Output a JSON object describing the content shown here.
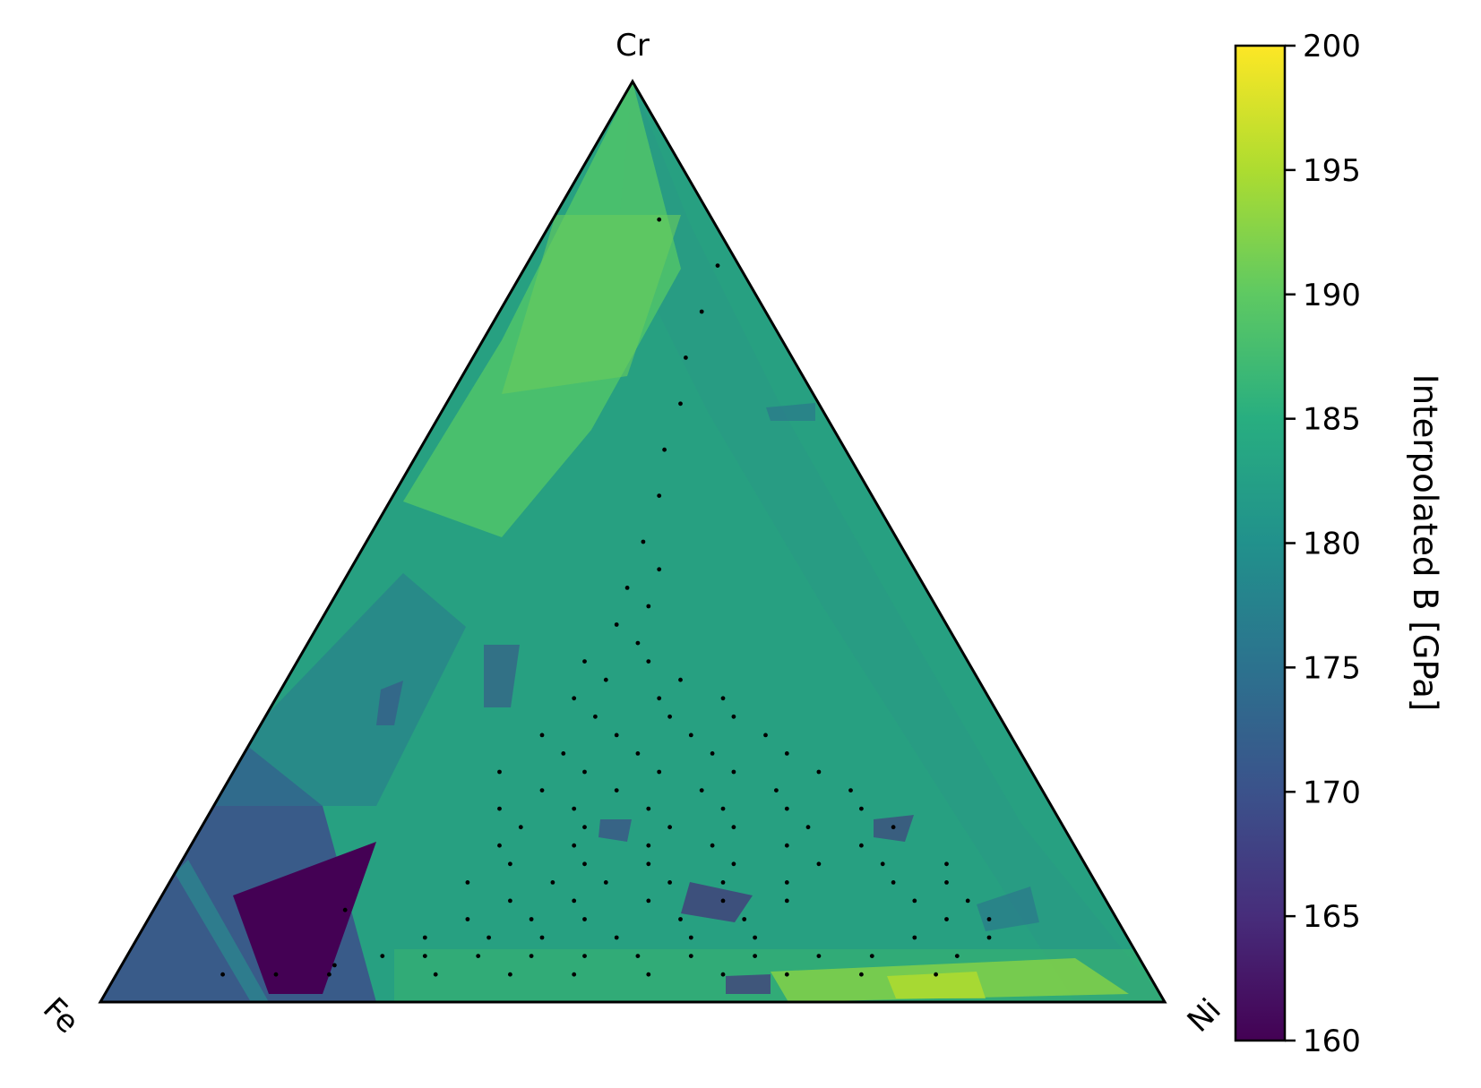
{
  "chart_data": {
    "type": "heatmap",
    "subtype": "ternary",
    "vertices": {
      "top": "Cr",
      "left": "Fe",
      "right": "Ni"
    },
    "colorbar": {
      "label": "Interpolated B [GPa]",
      "colormap": "viridis",
      "range": [
        160,
        200
      ],
      "ticks": [
        "160",
        "165",
        "170",
        "175",
        "180",
        "185",
        "190",
        "195",
        "200"
      ],
      "tick_values": [
        160,
        165,
        170,
        175,
        180,
        185,
        190,
        195,
        200
      ]
    },
    "points": [
      [
        0.03,
        0.2,
        0.77
      ],
      [
        0.03,
        0.15,
        0.82
      ],
      [
        0.03,
        0.1,
        0.87
      ],
      [
        0.03,
        0.3,
        0.67
      ],
      [
        0.03,
        0.37,
        0.6
      ],
      [
        0.03,
        0.43,
        0.54
      ],
      [
        0.03,
        0.5,
        0.47
      ],
      [
        0.03,
        0.57,
        0.4
      ],
      [
        0.03,
        0.63,
        0.34
      ],
      [
        0.03,
        0.7,
        0.27
      ],
      [
        0.03,
        0.77,
        0.2
      ],
      [
        0.04,
        0.2,
        0.76
      ],
      [
        0.05,
        0.24,
        0.71
      ],
      [
        0.05,
        0.28,
        0.67
      ],
      [
        0.05,
        0.33,
        0.62
      ],
      [
        0.05,
        0.38,
        0.57
      ],
      [
        0.05,
        0.43,
        0.52
      ],
      [
        0.05,
        0.48,
        0.47
      ],
      [
        0.05,
        0.53,
        0.42
      ],
      [
        0.05,
        0.59,
        0.36
      ],
      [
        0.05,
        0.65,
        0.3
      ],
      [
        0.05,
        0.7,
        0.25
      ],
      [
        0.05,
        0.78,
        0.17
      ],
      [
        0.07,
        0.27,
        0.66
      ],
      [
        0.07,
        0.33,
        0.6
      ],
      [
        0.07,
        0.38,
        0.55
      ],
      [
        0.07,
        0.45,
        0.48
      ],
      [
        0.07,
        0.52,
        0.41
      ],
      [
        0.07,
        0.58,
        0.35
      ],
      [
        0.07,
        0.73,
        0.2
      ],
      [
        0.07,
        0.8,
        0.13
      ],
      [
        0.09,
        0.3,
        0.61
      ],
      [
        0.09,
        0.36,
        0.55
      ],
      [
        0.09,
        0.41,
        0.5
      ],
      [
        0.09,
        0.5,
        0.41
      ],
      [
        0.09,
        0.56,
        0.35
      ],
      [
        0.09,
        0.75,
        0.16
      ],
      [
        0.09,
        0.79,
        0.12
      ],
      [
        0.1,
        0.18,
        0.72
      ],
      [
        0.11,
        0.33,
        0.56
      ],
      [
        0.11,
        0.39,
        0.5
      ],
      [
        0.11,
        0.46,
        0.43
      ],
      [
        0.11,
        0.53,
        0.36
      ],
      [
        0.11,
        0.59,
        0.3
      ],
      [
        0.11,
        0.71,
        0.18
      ],
      [
        0.11,
        0.76,
        0.13
      ],
      [
        0.13,
        0.28,
        0.59
      ],
      [
        0.13,
        0.36,
        0.51
      ],
      [
        0.13,
        0.41,
        0.46
      ],
      [
        0.13,
        0.47,
        0.4
      ],
      [
        0.13,
        0.52,
        0.35
      ],
      [
        0.13,
        0.58,
        0.29
      ],
      [
        0.13,
        0.68,
        0.19
      ],
      [
        0.13,
        0.73,
        0.14
      ],
      [
        0.15,
        0.31,
        0.54
      ],
      [
        0.15,
        0.38,
        0.47
      ],
      [
        0.15,
        0.44,
        0.41
      ],
      [
        0.15,
        0.52,
        0.33
      ],
      [
        0.15,
        0.6,
        0.25
      ],
      [
        0.15,
        0.66,
        0.19
      ],
      [
        0.15,
        0.72,
        0.13
      ],
      [
        0.17,
        0.29,
        0.54
      ],
      [
        0.17,
        0.36,
        0.47
      ],
      [
        0.17,
        0.43,
        0.4
      ],
      [
        0.17,
        0.49,
        0.34
      ],
      [
        0.17,
        0.56,
        0.27
      ],
      [
        0.17,
        0.63,
        0.2
      ],
      [
        0.19,
        0.3,
        0.51
      ],
      [
        0.19,
        0.36,
        0.45
      ],
      [
        0.19,
        0.44,
        0.37
      ],
      [
        0.19,
        0.5,
        0.31
      ],
      [
        0.19,
        0.57,
        0.24
      ],
      [
        0.19,
        0.65,
        0.16
      ],
      [
        0.21,
        0.27,
        0.52
      ],
      [
        0.21,
        0.34,
        0.45
      ],
      [
        0.21,
        0.41,
        0.38
      ],
      [
        0.21,
        0.48,
        0.31
      ],
      [
        0.21,
        0.54,
        0.25
      ],
      [
        0.21,
        0.61,
        0.18
      ],
      [
        0.23,
        0.3,
        0.47
      ],
      [
        0.23,
        0.37,
        0.4
      ],
      [
        0.23,
        0.45,
        0.32
      ],
      [
        0.23,
        0.52,
        0.25
      ],
      [
        0.23,
        0.59,
        0.18
      ],
      [
        0.25,
        0.25,
        0.5
      ],
      [
        0.25,
        0.33,
        0.42
      ],
      [
        0.25,
        0.4,
        0.35
      ],
      [
        0.25,
        0.47,
        0.28
      ],
      [
        0.25,
        0.55,
        0.2
      ],
      [
        0.27,
        0.3,
        0.43
      ],
      [
        0.27,
        0.37,
        0.36
      ],
      [
        0.27,
        0.44,
        0.29
      ],
      [
        0.27,
        0.51,
        0.22
      ],
      [
        0.29,
        0.27,
        0.44
      ],
      [
        0.29,
        0.34,
        0.37
      ],
      [
        0.29,
        0.41,
        0.3
      ],
      [
        0.29,
        0.48,
        0.23
      ],
      [
        0.31,
        0.31,
        0.38
      ],
      [
        0.31,
        0.38,
        0.31
      ],
      [
        0.31,
        0.44,
        0.25
      ],
      [
        0.33,
        0.28,
        0.39
      ],
      [
        0.33,
        0.36,
        0.31
      ],
      [
        0.33,
        0.42,
        0.25
      ],
      [
        0.35,
        0.3,
        0.35
      ],
      [
        0.35,
        0.37,
        0.28
      ],
      [
        0.37,
        0.27,
        0.36
      ],
      [
        0.37,
        0.33,
        0.3
      ],
      [
        0.39,
        0.31,
        0.3
      ],
      [
        0.41,
        0.28,
        0.31
      ],
      [
        0.43,
        0.3,
        0.27
      ],
      [
        0.45,
        0.27,
        0.28
      ],
      [
        0.47,
        0.29,
        0.24
      ],
      [
        0.5,
        0.26,
        0.24
      ],
      [
        0.55,
        0.25,
        0.2
      ],
      [
        0.6,
        0.23,
        0.17
      ],
      [
        0.65,
        0.22,
        0.13
      ],
      [
        0.7,
        0.2,
        0.1
      ],
      [
        0.75,
        0.19,
        0.06
      ],
      [
        0.8,
        0.18,
        0.02
      ],
      [
        0.85,
        0.1,
        0.05
      ]
    ]
  }
}
